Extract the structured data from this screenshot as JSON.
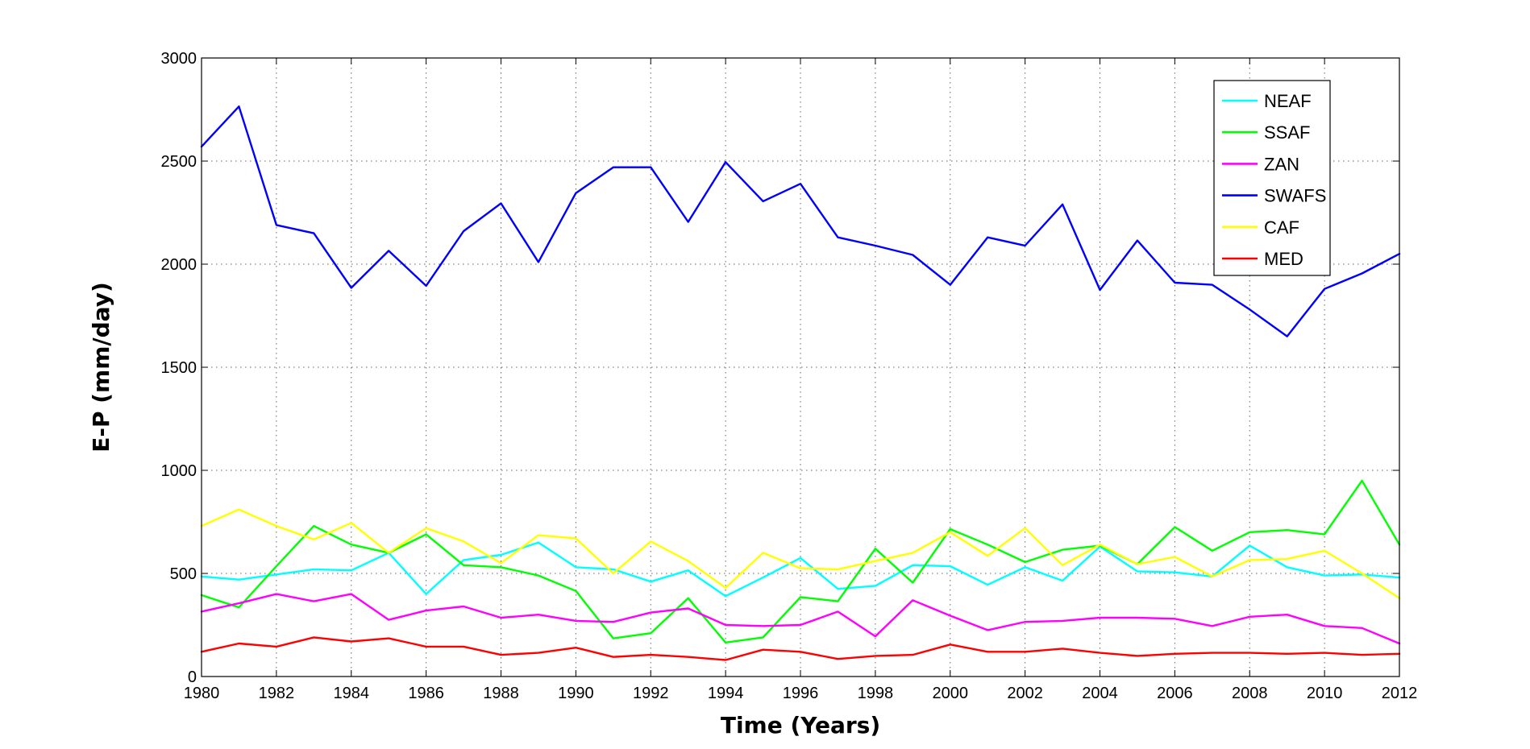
{
  "chart_data": {
    "type": "line",
    "title": "",
    "xlabel": "Time (Years)",
    "ylabel": "E-P (mm/day)",
    "xlim": [
      1980,
      2012
    ],
    "ylim": [
      0,
      3000
    ],
    "xticks": [
      1980,
      1982,
      1984,
      1986,
      1988,
      1990,
      1992,
      1994,
      1996,
      1998,
      2000,
      2002,
      2004,
      2006,
      2008,
      2010,
      2012
    ],
    "yticks": [
      0,
      500,
      1000,
      1500,
      2000,
      2500,
      3000
    ],
    "grid": true,
    "legend_position": "top-right",
    "x": [
      1980,
      1981,
      1982,
      1983,
      1984,
      1985,
      1986,
      1987,
      1988,
      1989,
      1990,
      1991,
      1992,
      1993,
      1994,
      1995,
      1996,
      1997,
      1998,
      1999,
      2000,
      2001,
      2002,
      2003,
      2004,
      2005,
      2006,
      2007,
      2008,
      2009,
      2010,
      2011,
      2012
    ],
    "series": [
      {
        "name": "NEAF",
        "color": "#00ffff",
        "values": [
          485,
          470,
          495,
          520,
          515,
          600,
          400,
          565,
          590,
          650,
          530,
          520,
          460,
          515,
          390,
          480,
          575,
          425,
          440,
          540,
          535,
          445,
          530,
          465,
          630,
          510,
          505,
          485,
          635,
          530,
          490,
          495,
          480
        ]
      },
      {
        "name": "SSAF",
        "color": "#00ff00",
        "values": [
          395,
          335,
          535,
          730,
          640,
          600,
          690,
          540,
          530,
          490,
          415,
          185,
          210,
          380,
          165,
          190,
          385,
          365,
          620,
          455,
          715,
          640,
          555,
          615,
          635,
          545,
          725,
          610,
          700,
          710,
          690,
          950,
          640
        ]
      },
      {
        "name": "ZAN",
        "color": "#ff00ff",
        "values": [
          315,
          355,
          400,
          365,
          400,
          275,
          320,
          340,
          285,
          300,
          270,
          265,
          310,
          330,
          250,
          245,
          250,
          315,
          195,
          370,
          295,
          225,
          265,
          270,
          285,
          285,
          280,
          245,
          290,
          300,
          245,
          235,
          160
        ]
      },
      {
        "name": "SWAFS",
        "color": "#0000ff",
        "values": [
          2570,
          2765,
          2190,
          2150,
          1885,
          2065,
          1895,
          2160,
          2295,
          2010,
          2345,
          2470,
          2470,
          2205,
          2495,
          2305,
          2390,
          2130,
          2090,
          2045,
          1900,
          2130,
          2090,
          2290,
          1875,
          2115,
          1910,
          1900,
          1780,
          1650,
          1880,
          1955,
          2050
        ]
      },
      {
        "name": "CAF",
        "color": "#ffff00",
        "values": [
          730,
          810,
          730,
          665,
          745,
          600,
          720,
          655,
          550,
          685,
          670,
          500,
          655,
          560,
          430,
          600,
          525,
          520,
          560,
          600,
          700,
          585,
          720,
          540,
          640,
          545,
          580,
          485,
          565,
          570,
          610,
          500,
          380
        ]
      },
      {
        "name": "MED",
        "color": "#ff0000",
        "values": [
          120,
          160,
          145,
          190,
          170,
          185,
          145,
          145,
          105,
          115,
          140,
          95,
          105,
          95,
          80,
          130,
          120,
          85,
          100,
          105,
          155,
          120,
          120,
          135,
          115,
          100,
          110,
          115,
          115,
          110,
          115,
          105,
          110
        ]
      }
    ]
  }
}
